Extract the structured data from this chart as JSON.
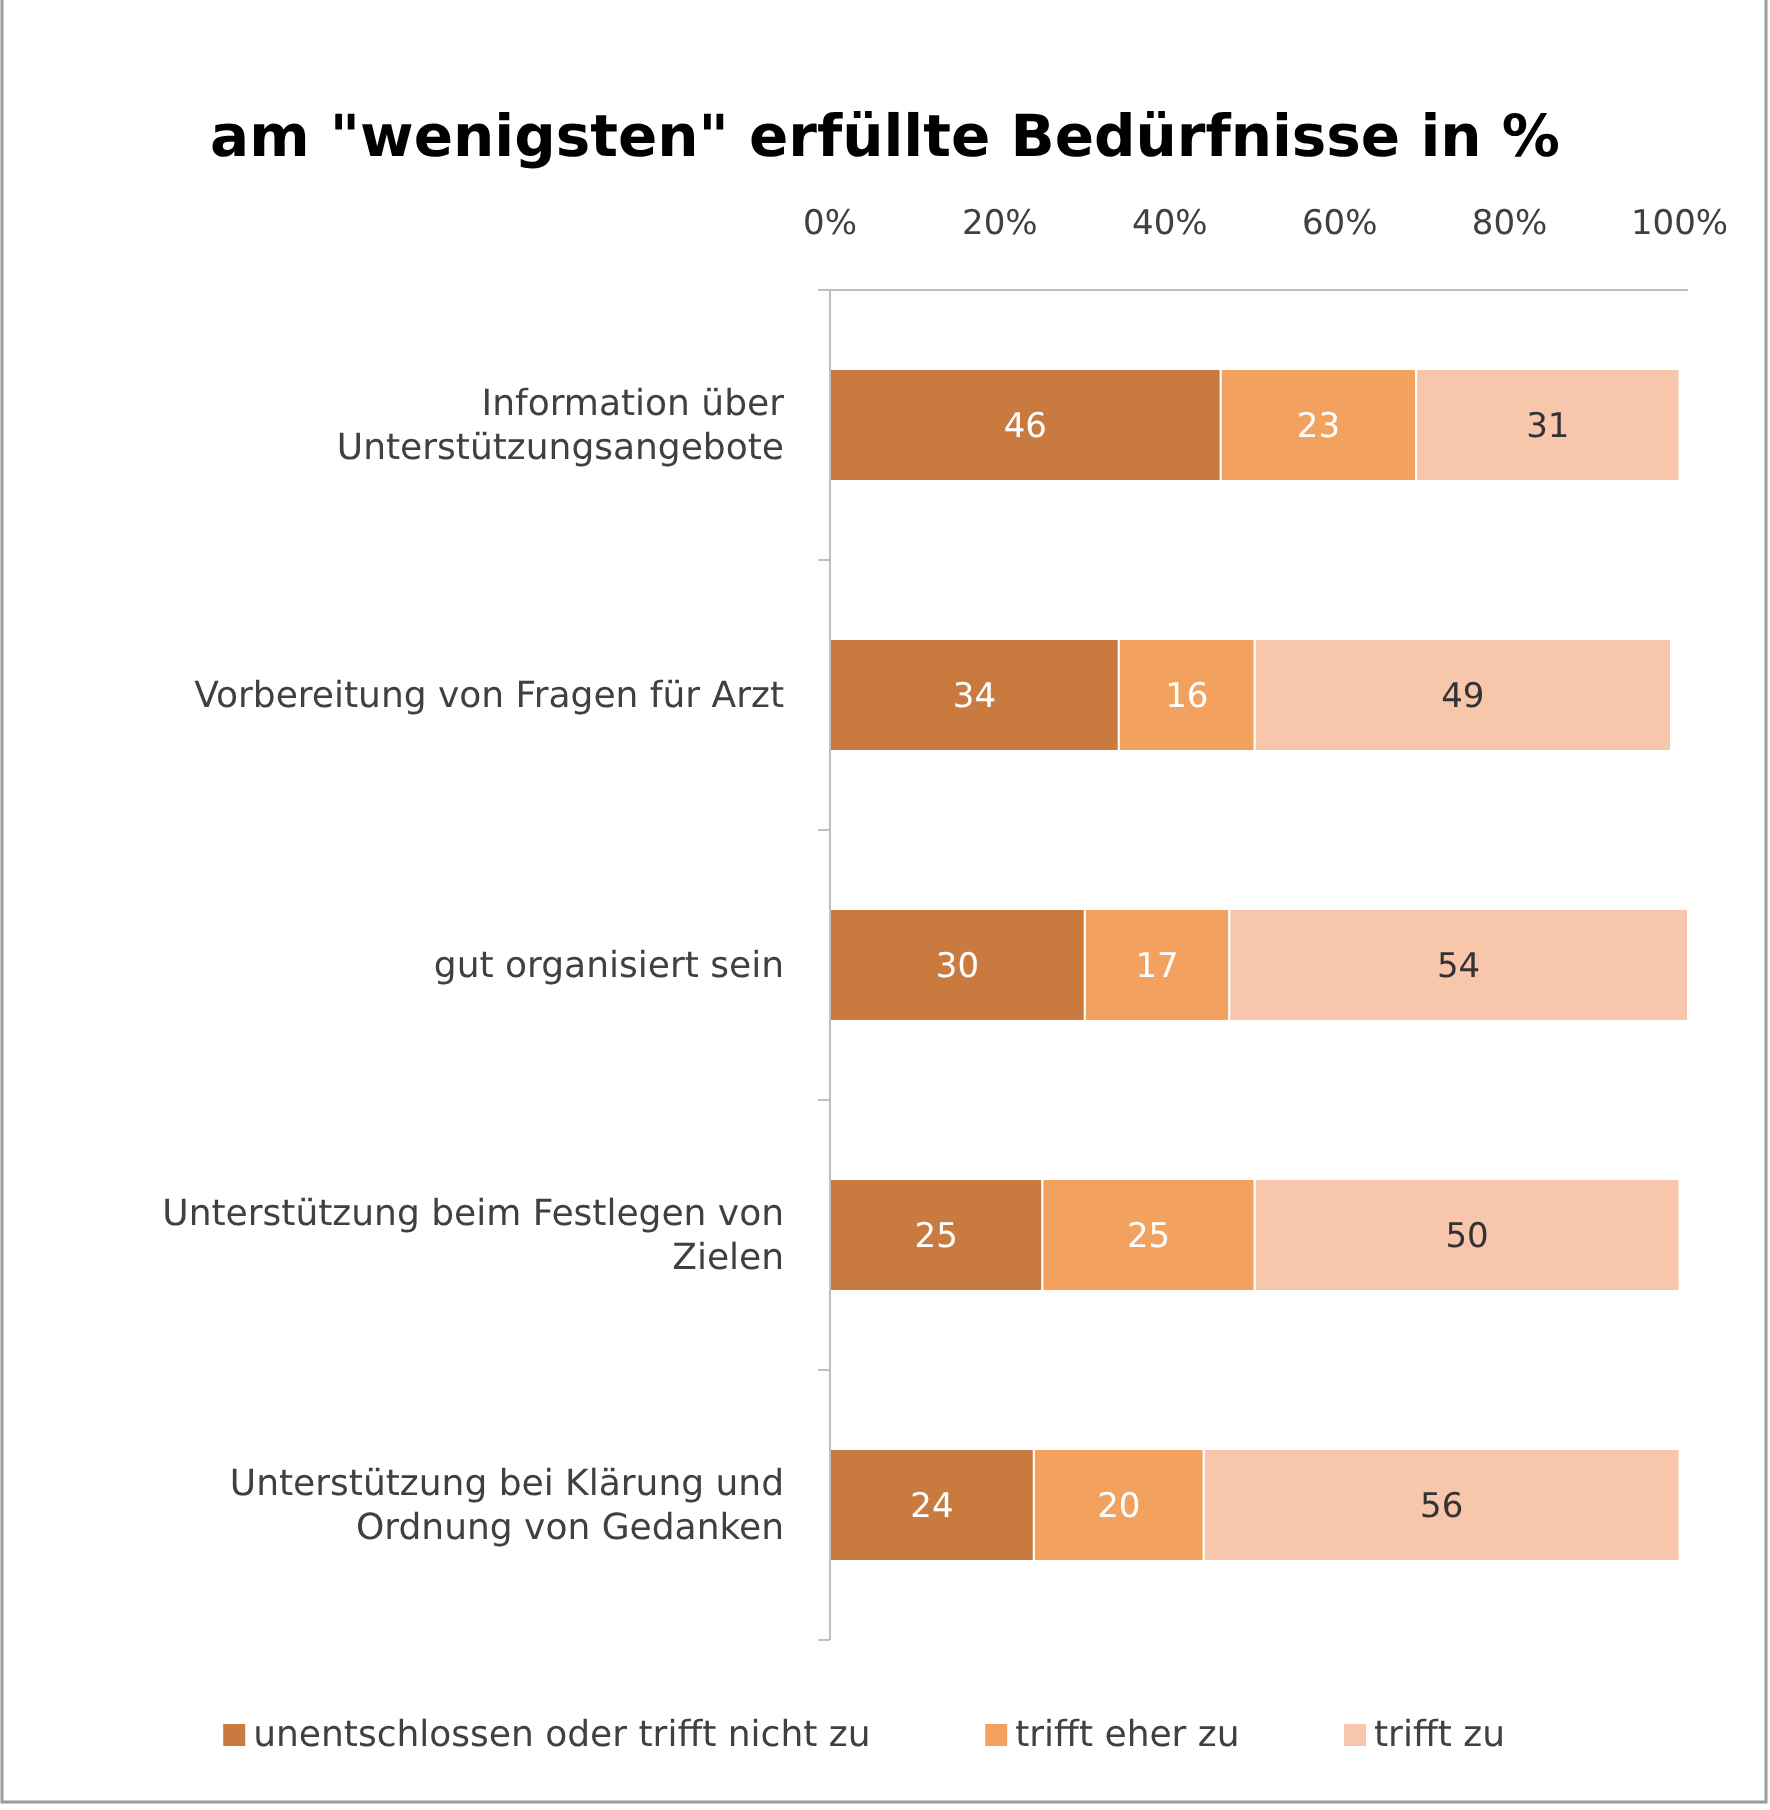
{
  "chart_data": {
    "type": "bar",
    "orientation": "horizontal",
    "stacked": true,
    "title": "am \"wenigsten\" erfüllte Bedürfnisse  in %",
    "categories": [
      "Information über Unterstützungsangebote",
      "Vorbereitung von Fragen für Arzt",
      "gut organisiert sein",
      "Unterstützung beim Festlegen von Zielen",
      "Unterstützung bei Klärung und Ordnung von Gedanken"
    ],
    "series": [
      {
        "name": "unentschlossen oder trifft nicht zu",
        "color": "#c97a3f",
        "values": [
          46,
          34,
          30,
          25,
          24
        ]
      },
      {
        "name": "trifft eher zu",
        "color": "#f2a25e",
        "values": [
          23,
          16,
          17,
          25,
          20
        ]
      },
      {
        "name": "trifft zu",
        "color": "#f8c6ab",
        "values": [
          31,
          49,
          54,
          50,
          56
        ]
      }
    ],
    "xlim": [
      0,
      101
    ],
    "xticks": [
      {
        "value": 0,
        "label": "0%"
      },
      {
        "value": 20,
        "label": "20%"
      },
      {
        "value": 40,
        "label": "40%"
      },
      {
        "value": 60,
        "label": "60%"
      },
      {
        "value": 80,
        "label": "80%"
      },
      {
        "value": 100,
        "label": "100%"
      }
    ],
    "data_labels": true,
    "legend": "bottom",
    "grid": false
  }
}
